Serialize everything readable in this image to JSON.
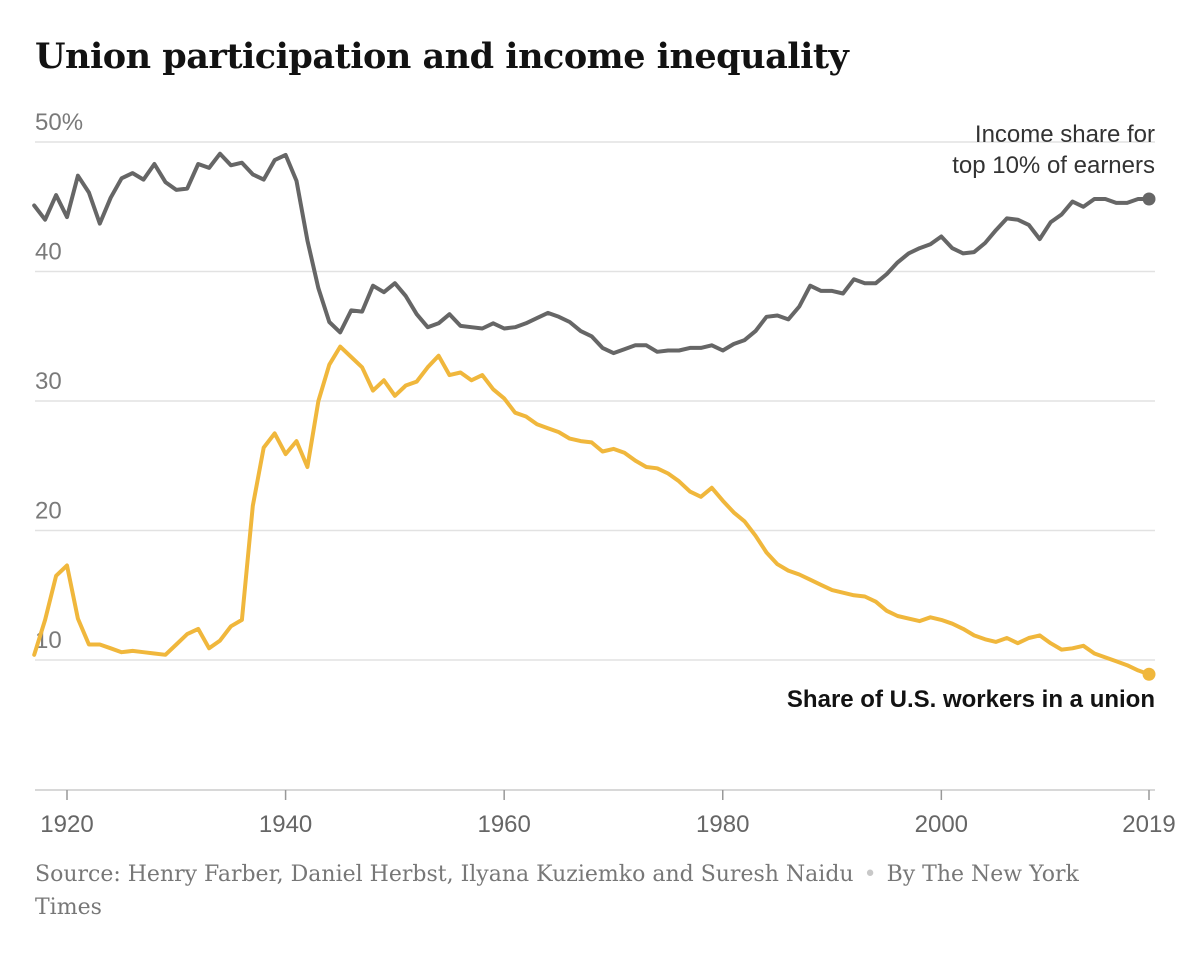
{
  "title": "Union participation and income inequality",
  "source": {
    "text": "Source: Henry Farber, Daniel Herbst, Ilyana Kuziemko and Suresh Naidu",
    "byline": "By The New York Times"
  },
  "colors": {
    "income": "#666666",
    "union": "#f0b73c",
    "grid": "#e2e2e2",
    "axis": "#cccccc"
  },
  "chart_data": {
    "type": "line",
    "title": "Union participation and income inequality",
    "xlim": [
      1917,
      2019
    ],
    "ylim": [
      0,
      50
    ],
    "y_ticks": [
      {
        "value": 50,
        "label": "50%"
      },
      {
        "value": 40,
        "label": "40"
      },
      {
        "value": 30,
        "label": "30"
      },
      {
        "value": 20,
        "label": "20"
      },
      {
        "value": 10,
        "label": "10"
      }
    ],
    "x_ticks": [
      {
        "value": 1920,
        "label": "1920"
      },
      {
        "value": 1940,
        "label": "1940"
      },
      {
        "value": 1960,
        "label": "1960"
      },
      {
        "value": 1980,
        "label": "1980"
      },
      {
        "value": 2000,
        "label": "2000"
      },
      {
        "value": 2019,
        "label": "2019"
      }
    ],
    "grid": true,
    "series": [
      {
        "name_lines": [
          "Income share for",
          "top 10% of earners"
        ],
        "color": "#666666",
        "points": [
          [
            1917,
            45.1
          ],
          [
            1918,
            44.0
          ],
          [
            1919,
            45.9
          ],
          [
            1920,
            44.2
          ],
          [
            1921,
            47.4
          ],
          [
            1922,
            46.1
          ],
          [
            1923,
            43.7
          ],
          [
            1924,
            45.7
          ],
          [
            1925,
            47.2
          ],
          [
            1926,
            47.6
          ],
          [
            1927,
            47.1
          ],
          [
            1928,
            48.3
          ],
          [
            1929,
            46.9
          ],
          [
            1930,
            46.3
          ],
          [
            1931,
            46.4
          ],
          [
            1932,
            48.3
          ],
          [
            1933,
            48.0
          ],
          [
            1934,
            49.1
          ],
          [
            1935,
            48.2
          ],
          [
            1936,
            48.4
          ],
          [
            1937,
            47.5
          ],
          [
            1938,
            47.1
          ],
          [
            1939,
            48.6
          ],
          [
            1940,
            49.0
          ],
          [
            1941,
            47.0
          ],
          [
            1942,
            42.4
          ],
          [
            1943,
            38.7
          ],
          [
            1944,
            36.1
          ],
          [
            1945,
            35.3
          ],
          [
            1946,
            37.0
          ],
          [
            1947,
            36.9
          ],
          [
            1948,
            38.9
          ],
          [
            1949,
            38.4
          ],
          [
            1950,
            39.1
          ],
          [
            1951,
            38.1
          ],
          [
            1952,
            36.7
          ],
          [
            1953,
            35.7
          ],
          [
            1954,
            36.0
          ],
          [
            1955,
            36.7
          ],
          [
            1956,
            35.8
          ],
          [
            1957,
            35.7
          ],
          [
            1958,
            35.6
          ],
          [
            1959,
            36.0
          ],
          [
            1960,
            35.6
          ],
          [
            1961,
            35.7
          ],
          [
            1962,
            36.0
          ],
          [
            1963,
            36.4
          ],
          [
            1964,
            36.8
          ],
          [
            1965,
            36.5
          ],
          [
            1966,
            36.1
          ],
          [
            1967,
            35.4
          ],
          [
            1968,
            35.0
          ],
          [
            1969,
            34.1
          ],
          [
            1970,
            33.7
          ],
          [
            1971,
            34.0
          ],
          [
            1972,
            34.3
          ],
          [
            1973,
            34.3
          ],
          [
            1974,
            33.8
          ],
          [
            1975,
            33.9
          ],
          [
            1976,
            33.9
          ],
          [
            1977,
            34.1
          ],
          [
            1978,
            34.1
          ],
          [
            1979,
            34.3
          ],
          [
            1980,
            33.9
          ],
          [
            1981,
            34.4
          ],
          [
            1982,
            34.7
          ],
          [
            1983,
            35.4
          ],
          [
            1984,
            36.5
          ],
          [
            1985,
            36.6
          ],
          [
            1986,
            36.3
          ],
          [
            1987,
            37.3
          ],
          [
            1988,
            38.9
          ],
          [
            1989,
            38.5
          ],
          [
            1990,
            38.5
          ],
          [
            1991,
            38.3
          ],
          [
            1992,
            39.4
          ],
          [
            1993,
            39.1
          ],
          [
            1994,
            39.1
          ],
          [
            1995,
            39.8
          ],
          [
            1996,
            40.7
          ],
          [
            1997,
            41.4
          ],
          [
            1998,
            41.8
          ],
          [
            1999,
            42.1
          ],
          [
            2000,
            42.7
          ],
          [
            2001,
            41.8
          ],
          [
            2002,
            41.4
          ],
          [
            2003,
            41.5
          ],
          [
            2004,
            42.2
          ],
          [
            2005,
            43.2
          ],
          [
            2006,
            44.1
          ],
          [
            2007,
            44.0
          ],
          [
            2008,
            43.6
          ],
          [
            2009,
            42.5
          ],
          [
            2010,
            43.8
          ],
          [
            2011,
            44.4
          ],
          [
            2012,
            45.4
          ],
          [
            2013,
            45.0
          ],
          [
            2014,
            45.6
          ],
          [
            2015,
            45.6
          ],
          [
            2016,
            45.3
          ],
          [
            2017,
            45.3
          ],
          [
            2018,
            45.6
          ],
          [
            2019,
            45.6
          ]
        ]
      },
      {
        "name_lines": [
          "Share of U.S. workers in a union"
        ],
        "color": "#f0b73c",
        "points": [
          [
            1917,
            10.4
          ],
          [
            1918,
            13.1
          ],
          [
            1919,
            16.5
          ],
          [
            1920,
            17.3
          ],
          [
            1921,
            13.2
          ],
          [
            1922,
            11.2
          ],
          [
            1923,
            11.2
          ],
          [
            1924,
            10.9
          ],
          [
            1925,
            10.6
          ],
          [
            1926,
            10.7
          ],
          [
            1927,
            10.6
          ],
          [
            1928,
            10.5
          ],
          [
            1929,
            10.4
          ],
          [
            1930,
            11.2
          ],
          [
            1931,
            12.0
          ],
          [
            1932,
            12.4
          ],
          [
            1933,
            10.9
          ],
          [
            1934,
            11.5
          ],
          [
            1935,
            12.6
          ],
          [
            1936,
            13.1
          ],
          [
            1937,
            21.9
          ],
          [
            1938,
            26.4
          ],
          [
            1939,
            27.5
          ],
          [
            1940,
            25.9
          ],
          [
            1941,
            26.9
          ],
          [
            1942,
            24.9
          ],
          [
            1943,
            30.0
          ],
          [
            1944,
            32.8
          ],
          [
            1945,
            34.2
          ],
          [
            1946,
            33.4
          ],
          [
            1947,
            32.6
          ],
          [
            1948,
            30.8
          ],
          [
            1949,
            31.6
          ],
          [
            1950,
            30.4
          ],
          [
            1951,
            31.2
          ],
          [
            1952,
            31.5
          ],
          [
            1953,
            32.6
          ],
          [
            1954,
            33.5
          ],
          [
            1955,
            32.0
          ],
          [
            1956,
            32.2
          ],
          [
            1957,
            31.6
          ],
          [
            1958,
            32.0
          ],
          [
            1959,
            30.9
          ],
          [
            1960,
            30.2
          ],
          [
            1961,
            29.1
          ],
          [
            1962,
            28.8
          ],
          [
            1963,
            28.2
          ],
          [
            1964,
            27.9
          ],
          [
            1965,
            27.6
          ],
          [
            1966,
            27.1
          ],
          [
            1967,
            26.9
          ],
          [
            1968,
            26.8
          ],
          [
            1969,
            26.1
          ],
          [
            1970,
            26.3
          ],
          [
            1971,
            26.0
          ],
          [
            1972,
            25.4
          ],
          [
            1973,
            24.9
          ],
          [
            1974,
            24.8
          ],
          [
            1975,
            24.4
          ],
          [
            1976,
            23.8
          ],
          [
            1977,
            23.0
          ],
          [
            1978,
            22.6
          ],
          [
            1979,
            23.3
          ],
          [
            1980,
            22.3
          ],
          [
            1981,
            21.4
          ],
          [
            1982,
            20.7
          ],
          [
            1983,
            19.6
          ],
          [
            1984,
            18.3
          ],
          [
            1985,
            17.4
          ],
          [
            1986,
            16.9
          ],
          [
            1987,
            16.6
          ],
          [
            1988,
            16.2
          ],
          [
            1989,
            15.8
          ],
          [
            1990,
            15.4
          ],
          [
            1991,
            15.2
          ],
          [
            1992,
            15.0
          ],
          [
            1993,
            14.9
          ],
          [
            1994,
            14.5
          ],
          [
            1995,
            13.8
          ],
          [
            1996,
            13.4
          ],
          [
            1997,
            13.2
          ],
          [
            1998,
            13.0
          ],
          [
            1999,
            13.3
          ],
          [
            2000,
            13.1
          ],
          [
            2001,
            12.8
          ],
          [
            2002,
            12.4
          ],
          [
            2003,
            11.9
          ],
          [
            2004,
            11.6
          ],
          [
            2005,
            11.4
          ],
          [
            2006,
            11.7
          ],
          [
            2007,
            11.3
          ],
          [
            2008,
            11.7
          ],
          [
            2009,
            11.9
          ],
          [
            2010,
            11.3
          ],
          [
            2011,
            10.8
          ],
          [
            2012,
            10.9
          ],
          [
            2013,
            11.1
          ],
          [
            2014,
            10.5
          ],
          [
            2015,
            10.2
          ],
          [
            2016,
            9.9
          ],
          [
            2017,
            9.6
          ],
          [
            2018,
            9.2
          ],
          [
            2019,
            8.9
          ]
        ]
      }
    ]
  }
}
